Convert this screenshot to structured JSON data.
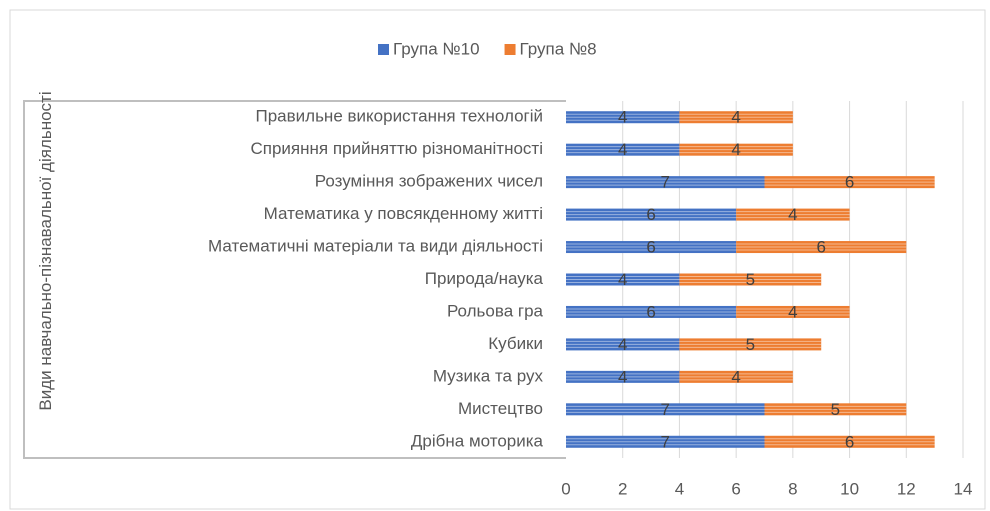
{
  "chart_data": {
    "type": "stacked_barh",
    "y_label": "Види навчально-пізнавальної діяльності",
    "categories": [
      "Правильне використання технологій",
      "Сприяння прийняттю різноманітності",
      "Розуміння зображених чисел",
      "Математика у повсякденному житті",
      "Математичні матеріали та види діяльності",
      "Природа/наука",
      "Рольова гра",
      "Кубики",
      "Музика та рух",
      "Мистецтво",
      "Дрібна моторика"
    ],
    "series": [
      {
        "name": "Група №10",
        "color": "#4472c4",
        "values": [
          4,
          4,
          7,
          6,
          6,
          4,
          6,
          4,
          4,
          7,
          7
        ]
      },
      {
        "name": "Група №8",
        "color": "#ed7d31",
        "values": [
          4,
          4,
          6,
          4,
          6,
          5,
          4,
          5,
          4,
          5,
          6
        ]
      }
    ],
    "xlim": [
      0,
      14
    ],
    "xticks": [
      0,
      2,
      4,
      6,
      8,
      10,
      12,
      14
    ],
    "grid": true,
    "legend": "top"
  }
}
